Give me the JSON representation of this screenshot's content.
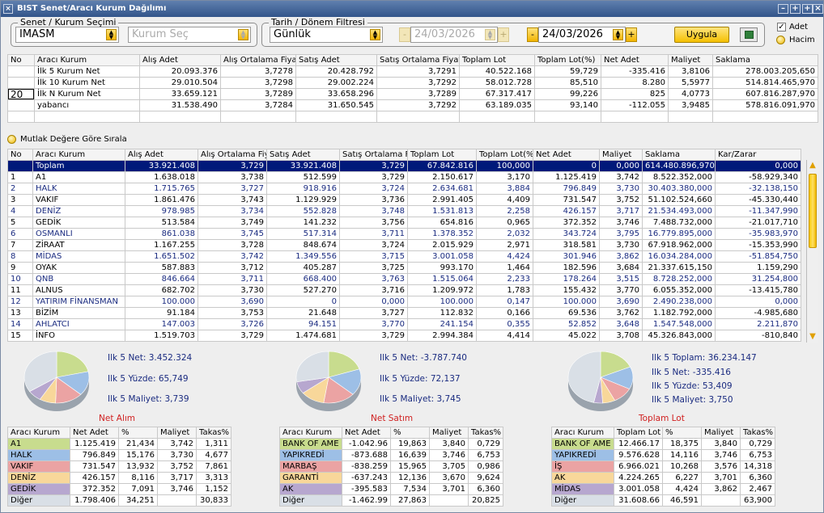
{
  "window": {
    "title": "BIST Senet/Aracı Kurum Dağılımı"
  },
  "filters": {
    "senet_legend": "Senet / Kurum Seçimi",
    "senet_value": "IMASM",
    "kurum_placeholder": "Kurum Seç",
    "tarih_legend": "Tarih / Dönem Filtresi",
    "period_value": "Günlük",
    "date_from": "24/03/2026",
    "date_to": "24/03/2026",
    "apply_label": "Uygula",
    "check_adet": "Adet",
    "radio_hacim": "Hacim"
  },
  "summary": {
    "headers": [
      "No",
      "Aracı Kurum",
      "Alış Adet",
      "Alış Ortalama Fiyat",
      "Satış Adet",
      "Satış Ortalama Fiyat",
      "Toplam Lot",
      "Toplam Lot(%)",
      "Net Adet",
      "Maliyet",
      "Saklama"
    ],
    "n_value": "20",
    "rows": [
      [
        "",
        "İlk 5 Kurum Net",
        "20.093.376",
        "3,7278",
        "20.428.792",
        "3,7291",
        "40.522.168",
        "59,729",
        "-335.416",
        "3,8106",
        "278.003.205,650"
      ],
      [
        "",
        "İlk 10 Kurum Net",
        "29.010.504",
        "3,7298",
        "29.002.224",
        "3,7292",
        "58.012.728",
        "85,510",
        "8.280",
        "5,5977",
        "514.814.465,970"
      ],
      [
        "",
        "İlk N Kurum Net",
        "33.659.121",
        "3,7289",
        "33.658.296",
        "3,7289",
        "67.317.417",
        "99,226",
        "825",
        "4,0773",
        "607.816.287,970"
      ],
      [
        "",
        "yabancı",
        "31.538.490",
        "3,7284",
        "31.650.545",
        "3,7292",
        "63.189.035",
        "93,140",
        "-112.055",
        "3,9485",
        "578.816.091,970"
      ]
    ]
  },
  "sort_label": "Mutlak Değere Göre Sırala",
  "main": {
    "headers": [
      "No",
      "Aracı Kurum",
      "Alış Adet",
      "Alış Ortalama Fiy",
      "Satış Adet",
      "Satış Ortalama Fi",
      "Toplam Lot",
      "Toplam Lot(%",
      "Net Adet",
      "Maliyet",
      "Saklama",
      "Kar/Zarar"
    ],
    "total": [
      "",
      "Toplam",
      "33.921.408",
      "3,729",
      "33.921.408",
      "3,729",
      "67.842.816",
      "100,000",
      "0",
      "0,000",
      "614.480.896,970",
      "0,000"
    ],
    "rows": [
      [
        "1",
        "A1",
        "1.638.018",
        "3,738",
        "512.599",
        "3,729",
        "2.150.617",
        "3,170",
        "1.125.419",
        "3,742",
        "8.522.352,000",
        "-58.929,340"
      ],
      [
        "2",
        "HALK",
        "1.715.765",
        "3,727",
        "918.916",
        "3,724",
        "2.634.681",
        "3,884",
        "796.849",
        "3,730",
        "30.403.380,000",
        "-32.138,150"
      ],
      [
        "3",
        "VAKIF",
        "1.861.476",
        "3,743",
        "1.129.929",
        "3,736",
        "2.991.405",
        "4,409",
        "731.547",
        "3,752",
        "51.102.524,660",
        "-45.330,440"
      ],
      [
        "4",
        "DENİZ",
        "978.985",
        "3,734",
        "552.828",
        "3,748",
        "1.531.813",
        "2,258",
        "426.157",
        "3,717",
        "21.534.493,000",
        "-11.347,990"
      ],
      [
        "5",
        "GEDİK",
        "513.584",
        "3,749",
        "141.232",
        "3,756",
        "654.816",
        "0,965",
        "372.352",
        "3,746",
        "7.488.732,000",
        "-21.017,710"
      ],
      [
        "6",
        "OSMANLI",
        "861.038",
        "3,745",
        "517.314",
        "3,711",
        "1.378.352",
        "2,032",
        "343.724",
        "3,795",
        "16.779.895,000",
        "-35.983,970"
      ],
      [
        "7",
        "ZİRAAT",
        "1.167.255",
        "3,728",
        "848.674",
        "3,724",
        "2.015.929",
        "2,971",
        "318.581",
        "3,730",
        "67.918.962,000",
        "-15.353,990"
      ],
      [
        "8",
        "MİDAS",
        "1.651.502",
        "3,742",
        "1.349.556",
        "3,715",
        "3.001.058",
        "4,424",
        "301.946",
        "3,862",
        "16.034.284,000",
        "-51.854,750"
      ],
      [
        "9",
        "OYAK",
        "587.883",
        "3,712",
        "405.287",
        "3,725",
        "993.170",
        "1,464",
        "182.596",
        "3,684",
        "21.337.615,150",
        "1.159,290"
      ],
      [
        "10",
        "QNB",
        "846.664",
        "3,711",
        "668.400",
        "3,763",
        "1.515.064",
        "2,233",
        "178.264",
        "3,515",
        "8.728.252,000",
        "31.254,800"
      ],
      [
        "11",
        "ALNUS",
        "682.702",
        "3,730",
        "527.270",
        "3,716",
        "1.209.972",
        "1,783",
        "155.432",
        "3,770",
        "6.055.352,000",
        "-13.415,780"
      ],
      [
        "12",
        "YATIRIM FİNANSMAN",
        "100.000",
        "3,690",
        "0",
        "0,000",
        "100.000",
        "0,147",
        "100.000",
        "3,690",
        "2.490.238,000",
        "0,000"
      ],
      [
        "13",
        "BİZİM",
        "91.184",
        "3,753",
        "21.648",
        "3,727",
        "112.832",
        "0,166",
        "69.536",
        "3,762",
        "1.182.792,000",
        "-4.985,680"
      ],
      [
        "14",
        "AHLATCI",
        "147.003",
        "3,726",
        "94.151",
        "3,770",
        "241.154",
        "0,355",
        "52.852",
        "3,648",
        "1.547.548,000",
        "2.211,870"
      ],
      [
        "15",
        "İNFO",
        "1.519.703",
        "3,729",
        "1.474.681",
        "3,729",
        "2.994.384",
        "4,414",
        "45.022",
        "3,708",
        "45.326.843,000",
        "-810,840"
      ]
    ]
  },
  "panels": [
    {
      "title": "Net Alım",
      "info": [
        "Ilk 5 Net: 3.452.324",
        "Ilk 5 Yüzde: 65,749",
        "Ilk 5 Maliyet: 3,739"
      ],
      "headers": [
        "Aracı Kurum",
        "Net Adet",
        "%",
        "Maliyet",
        "Takas%"
      ],
      "rows": [
        [
          "A1",
          "1.125.419",
          "21,434",
          "3,742",
          "1,311"
        ],
        [
          "HALK",
          "796.849",
          "15,176",
          "3,730",
          "4,677"
        ],
        [
          "VAKIF",
          "731.547",
          "13,932",
          "3,752",
          "7,861"
        ],
        [
          "DENİZ",
          "426.157",
          "8,116",
          "3,717",
          "3,313"
        ],
        [
          "GEDİK",
          "372.352",
          "7,091",
          "3,746",
          "1,152"
        ],
        [
          "Diğer",
          "1.798.406",
          "34,251",
          "",
          "30,833"
        ]
      ],
      "slices": [
        21.434,
        15.176,
        13.932,
        8.116,
        7.091,
        34.251
      ]
    },
    {
      "title": "Net Satım",
      "info": [
        "Ilk 5 Net: -3.787.740",
        "Ilk 5 Yüzde: 72,137",
        "Ilk 5 Maliyet: 3,745"
      ],
      "headers": [
        "Aracı Kurum",
        "Net Adet",
        "%",
        "Maliyet",
        "Takas%"
      ],
      "rows": [
        [
          "BANK OF AME",
          "-1.042.96",
          "19,863",
          "3,840",
          "0,729"
        ],
        [
          "YAPIKREDİ",
          "-873.688",
          "16,639",
          "3,746",
          "6,753"
        ],
        [
          "MARBAŞ",
          "-838.259",
          "15,965",
          "3,705",
          "0,986"
        ],
        [
          "GARANTİ",
          "-637.243",
          "12,136",
          "3,670",
          "9,624"
        ],
        [
          "AK",
          "-395.583",
          "7,534",
          "3,701",
          "6,360"
        ],
        [
          "Diğer",
          "-1.462.99",
          "27,863",
          "",
          "20,825"
        ]
      ],
      "slices": [
        19.863,
        16.639,
        15.965,
        12.136,
        7.534,
        27.863
      ]
    },
    {
      "title": "Toplam Lot",
      "info": [
        "Ilk 5 Toplam: 36.234.147",
        "Ilk 5 Net: -335.416",
        "Ilk 5 Yüzde: 53,409",
        "Ilk 5 Maliyet: 3,750"
      ],
      "headers": [
        "Aracı Kurum",
        "Toplam Lot",
        "%",
        "Maliyet",
        "Takas%"
      ],
      "rows": [
        [
          "BANK OF AME",
          "12.466.17",
          "18,375",
          "3,840",
          "0,729"
        ],
        [
          "YAPIKREDİ",
          "9.576.628",
          "14,116",
          "3,746",
          "6,753"
        ],
        [
          "İŞ",
          "6.966.021",
          "10,268",
          "3,576",
          "14,318"
        ],
        [
          "AK",
          "4.224.265",
          "6,227",
          "3,701",
          "6,360"
        ],
        [
          "MİDAS",
          "3.001.058",
          "4,424",
          "3,862",
          "2,467"
        ],
        [
          "Diğer",
          "31.608.66",
          "46,591",
          "",
          "63,900"
        ]
      ],
      "slices": [
        18.375,
        14.116,
        10.268,
        6.227,
        4.424,
        46.591
      ]
    }
  ],
  "colors": {
    "slice": [
      "#c8dc8e",
      "#9dbfe6",
      "#eba3a3",
      "#f8d79a",
      "#b7a7cf",
      "#d9dfe6"
    ],
    "title_bar": "#3d5f94",
    "selected_row": "#00197a"
  }
}
